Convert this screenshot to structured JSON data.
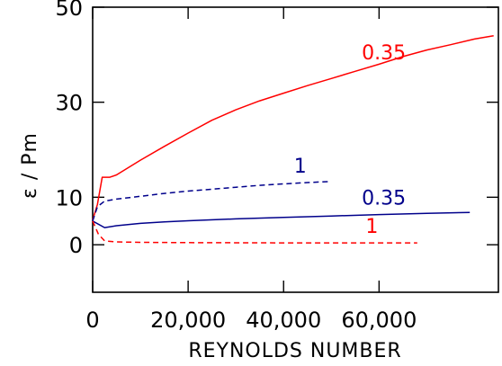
{
  "chart_data": {
    "type": "line",
    "title": "",
    "xlabel": "REYNOLDS NUMBER",
    "ylabel": "ɛ / Pm",
    "xlim": [
      0,
      85000
    ],
    "ylim": [
      -10,
      50
    ],
    "grid": false,
    "x_ticks": [
      {
        "value": 0,
        "label": "0"
      },
      {
        "value": 20000,
        "label": "20,000"
      },
      {
        "value": 40000,
        "label": "40,000"
      },
      {
        "value": 60000,
        "label": "60,000"
      }
    ],
    "y_ticks": [
      {
        "value": 0,
        "label": "0"
      },
      {
        "value": 10,
        "label": "10"
      },
      {
        "value": 30,
        "label": "30"
      },
      {
        "value": 50,
        "label": "50"
      }
    ],
    "series": [
      {
        "name": "0.35",
        "color": "#ff0000",
        "style": "solid",
        "label_at": {
          "x": 61000,
          "y": 39
        },
        "points": [
          [
            0,
            5.2
          ],
          [
            1000,
            8.5
          ],
          [
            2000,
            14.2
          ],
          [
            3600,
            14.2
          ],
          [
            5000,
            14.7
          ],
          [
            10000,
            17.8
          ],
          [
            15000,
            20.7
          ],
          [
            20000,
            23.5
          ],
          [
            25000,
            26.2
          ],
          [
            30000,
            28.4
          ],
          [
            35000,
            30.3
          ],
          [
            40000,
            31.9
          ],
          [
            45000,
            33.5
          ],
          [
            50000,
            35.0
          ],
          [
            55000,
            36.5
          ],
          [
            60000,
            38.0
          ],
          [
            65000,
            39.6
          ],
          [
            70000,
            41.0
          ],
          [
            75000,
            42.1
          ],
          [
            80000,
            43.3
          ],
          [
            84000,
            44.0
          ]
        ]
      },
      {
        "name": "1",
        "color": "#00008b",
        "style": "dashed",
        "label_at": {
          "x": 43500,
          "y": 15.2
        },
        "points": [
          [
            0,
            5.0
          ],
          [
            1000,
            8.0
          ],
          [
            2500,
            9.2
          ],
          [
            5000,
            9.6
          ],
          [
            10000,
            10.2
          ],
          [
            15000,
            10.8
          ],
          [
            20000,
            11.3
          ],
          [
            25000,
            11.7
          ],
          [
            30000,
            12.1
          ],
          [
            35000,
            12.5
          ],
          [
            40000,
            12.8
          ],
          [
            45000,
            13.1
          ],
          [
            49500,
            13.3
          ]
        ]
      },
      {
        "name": "0.35",
        "color": "#00008b",
        "style": "solid",
        "label_at": {
          "x": 61000,
          "y": 8.5
        },
        "points": [
          [
            0,
            5.0
          ],
          [
            2500,
            3.6
          ],
          [
            5000,
            4.0
          ],
          [
            10000,
            4.5
          ],
          [
            15000,
            4.8
          ],
          [
            20000,
            5.05
          ],
          [
            30000,
            5.45
          ],
          [
            40000,
            5.75
          ],
          [
            50000,
            6.05
          ],
          [
            60000,
            6.35
          ],
          [
            70000,
            6.6
          ],
          [
            79000,
            6.8
          ]
        ]
      },
      {
        "name": "1",
        "color": "#ff0000",
        "style": "dashed",
        "label_at": {
          "x": 58500,
          "y": 2.5
        },
        "points": [
          [
            0,
            5.0
          ],
          [
            1200,
            2.2
          ],
          [
            2500,
            0.8
          ],
          [
            5000,
            0.6
          ],
          [
            10000,
            0.5
          ],
          [
            20000,
            0.45
          ],
          [
            40000,
            0.4
          ],
          [
            60000,
            0.4
          ],
          [
            68000,
            0.4
          ]
        ]
      }
    ]
  }
}
